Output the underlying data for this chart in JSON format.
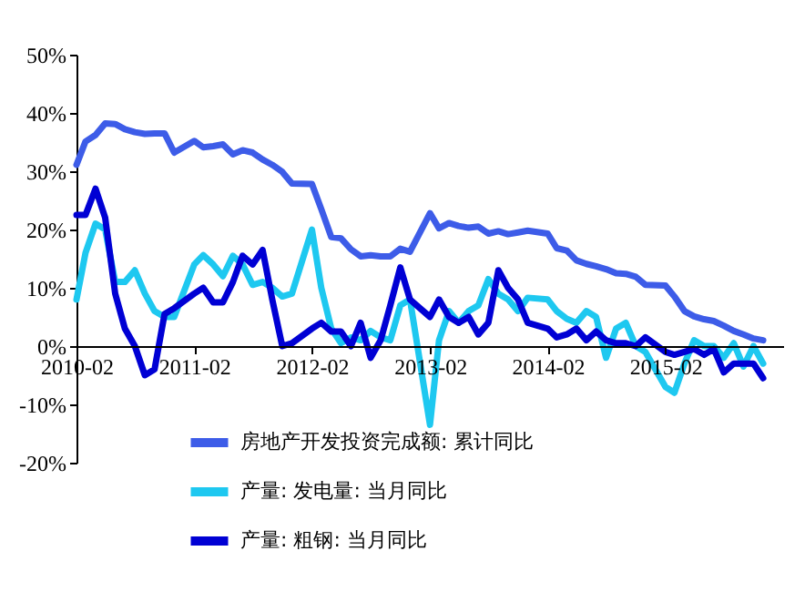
{
  "chart_data": {
    "type": "line",
    "x": [
      "2010-02",
      "2010-03",
      "2010-04",
      "2010-05",
      "2010-06",
      "2010-07",
      "2010-08",
      "2010-09",
      "2010-10",
      "2010-11",
      "2010-12",
      "2011-02",
      "2011-03",
      "2011-04",
      "2011-05",
      "2011-06",
      "2011-07",
      "2011-08",
      "2011-09",
      "2011-10",
      "2011-11",
      "2011-12",
      "2012-02",
      "2012-03",
      "2012-04",
      "2012-05",
      "2012-06",
      "2012-07",
      "2012-08",
      "2012-09",
      "2012-10",
      "2012-11",
      "2012-12",
      "2013-02",
      "2013-03",
      "2013-04",
      "2013-05",
      "2013-06",
      "2013-07",
      "2013-08",
      "2013-09",
      "2013-10",
      "2013-11",
      "2013-12",
      "2014-02",
      "2014-03",
      "2014-04",
      "2014-05",
      "2014-06",
      "2014-07",
      "2014-08",
      "2014-09",
      "2014-10",
      "2014-11",
      "2014-12",
      "2015-02",
      "2015-03",
      "2015-04",
      "2015-05",
      "2015-06",
      "2015-07",
      "2015-08",
      "2015-09",
      "2015-10",
      "2015-11",
      "2015-12"
    ],
    "series": [
      {
        "name": "房地产开发投资完成额: 累计同比",
        "color": "#3d5ce8",
        "values": [
          31.1,
          35.1,
          36.2,
          38.2,
          38.1,
          37.2,
          36.7,
          36.4,
          36.5,
          36.5,
          33.2,
          35.2,
          34.1,
          34.3,
          34.6,
          32.9,
          33.6,
          33.2,
          32.0,
          31.1,
          29.9,
          27.9,
          27.8,
          23.5,
          18.7,
          18.5,
          16.6,
          15.4,
          15.6,
          15.4,
          15.4,
          16.7,
          16.2,
          22.8,
          20.2,
          21.1,
          20.6,
          20.3,
          20.5,
          19.3,
          19.7,
          19.2,
          19.5,
          19.8,
          19.3,
          16.8,
          16.4,
          14.7,
          14.1,
          13.7,
          13.2,
          12.5,
          12.4,
          11.9,
          10.5,
          10.4,
          8.5,
          6.0,
          5.1,
          4.6,
          4.3,
          3.5,
          2.6,
          2.0,
          1.3,
          1.0
        ]
      },
      {
        "name": "产量: 发电量: 当月同比",
        "color": "#1ec8f0",
        "values": [
          8,
          16,
          21,
          20,
          11,
          11,
          13,
          9,
          6,
          5,
          5,
          14,
          15.6,
          14,
          12,
          15.5,
          14,
          10.5,
          11,
          10,
          8.5,
          9,
          20,
          10,
          3,
          0.5,
          1.5,
          1,
          2.6,
          1.5,
          1,
          7,
          8,
          -13.5,
          1,
          6,
          4,
          6,
          7,
          11.5,
          9,
          8,
          6,
          8.3,
          8,
          6,
          4.7,
          4,
          6,
          5,
          -2,
          3,
          4,
          0,
          -1,
          -7,
          -8,
          -3,
          1,
          0,
          0,
          -2,
          0.5,
          -3.5,
          0,
          -3
        ]
      },
      {
        "name": "产量: 粗钢: 当月同比",
        "color": "#0000d4",
        "values": [
          22.5,
          22.5,
          27,
          22,
          9,
          3,
          0,
          -5,
          -4,
          5.5,
          6.5,
          9,
          10,
          7.5,
          7.5,
          11,
          15.5,
          14,
          16.5,
          8,
          0,
          0.5,
          3,
          4,
          2.5,
          2.5,
          0,
          4,
          -2,
          1,
          7,
          13.5,
          8,
          5,
          8,
          5,
          4,
          5,
          2,
          4,
          13,
          10,
          8,
          4,
          3,
          1.5,
          2,
          3,
          1,
          2.5,
          1,
          0.5,
          0.5,
          0,
          1.5,
          -1,
          -1.5,
          -1,
          -0.5,
          -1.5,
          -0.5,
          -4.5,
          -3,
          -3,
          -3,
          -5.5
        ]
      }
    ],
    "xlim": [
      "2010-02",
      "2016-02"
    ],
    "xticks": [
      "2010-02",
      "2011-02",
      "2012-02",
      "2013-02",
      "2014-02",
      "2015-02"
    ],
    "ylim": [
      -20,
      50
    ],
    "yticks": [
      {
        "value": -20,
        "label": "-20%"
      },
      {
        "value": -10,
        "label": "-10%"
      },
      {
        "value": 0,
        "label": "0%"
      },
      {
        "value": 10,
        "label": "10%"
      },
      {
        "value": 20,
        "label": "20%"
      },
      {
        "value": 30,
        "label": "30%"
      },
      {
        "value": 40,
        "label": "40%"
      },
      {
        "value": 50,
        "label": "50%"
      }
    ],
    "grid": false,
    "legend": "bottom",
    "marker": "none",
    "line_style": "solid"
  }
}
